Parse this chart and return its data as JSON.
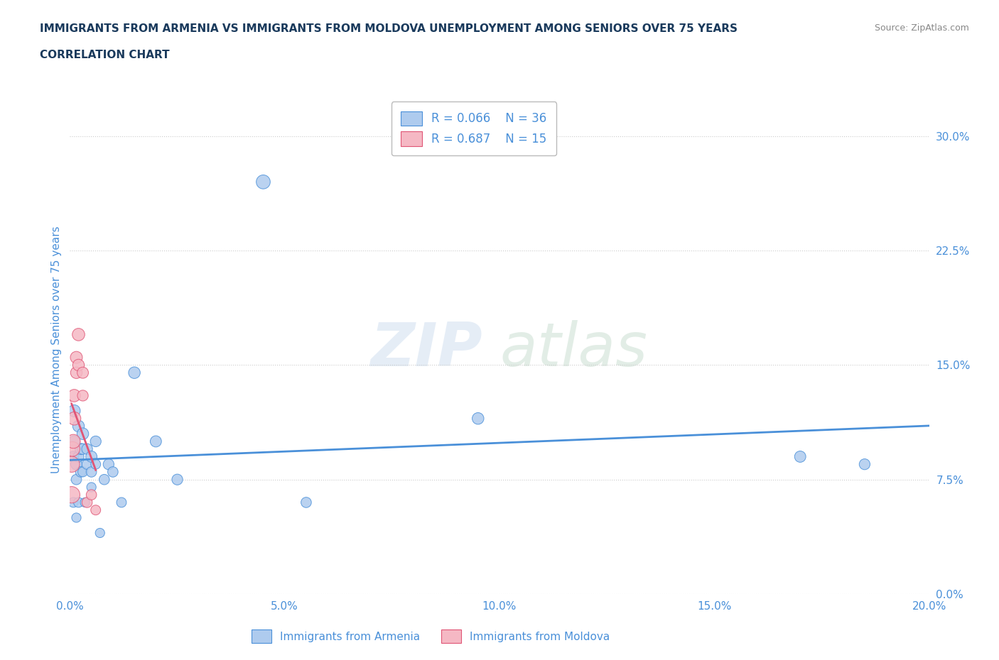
{
  "title_line1": "IMMIGRANTS FROM ARMENIA VS IMMIGRANTS FROM MOLDOVA UNEMPLOYMENT AMONG SENIORS OVER 75 YEARS",
  "title_line2": "CORRELATION CHART",
  "source": "Source: ZipAtlas.com",
  "ylabel": "Unemployment Among Seniors over 75 years",
  "watermark": "ZIPatlas",
  "armenia_R": 0.066,
  "armenia_N": 36,
  "moldova_R": 0.687,
  "moldova_N": 15,
  "armenia_color": "#aecbee",
  "moldova_color": "#f5b8c4",
  "armenia_line_color": "#4a90d9",
  "moldova_line_color": "#e05575",
  "background_color": "#ffffff",
  "grid_color": "#cccccc",
  "title_color": "#1a3a5c",
  "axis_color": "#4a90d9",
  "xlim": [
    0,
    0.2
  ],
  "ylim": [
    0,
    0.32
  ],
  "xticks": [
    0.0,
    0.05,
    0.1,
    0.15,
    0.2
  ],
  "yticks": [
    0.0,
    0.075,
    0.15,
    0.225,
    0.3
  ],
  "armenia_x": [
    0.0008,
    0.0008,
    0.001,
    0.001,
    0.0015,
    0.0015,
    0.0015,
    0.002,
    0.002,
    0.002,
    0.0025,
    0.0025,
    0.003,
    0.003,
    0.003,
    0.0035,
    0.004,
    0.004,
    0.005,
    0.005,
    0.005,
    0.006,
    0.006,
    0.007,
    0.008,
    0.009,
    0.01,
    0.012,
    0.015,
    0.02,
    0.025,
    0.045,
    0.055,
    0.095,
    0.17,
    0.185
  ],
  "armenia_y": [
    0.09,
    0.06,
    0.12,
    0.1,
    0.085,
    0.075,
    0.05,
    0.11,
    0.09,
    0.06,
    0.095,
    0.08,
    0.105,
    0.095,
    0.08,
    0.06,
    0.095,
    0.085,
    0.09,
    0.08,
    0.07,
    0.1,
    0.085,
    0.04,
    0.075,
    0.085,
    0.08,
    0.06,
    0.145,
    0.1,
    0.075,
    0.27,
    0.06,
    0.115,
    0.09,
    0.085
  ],
  "moldova_x": [
    0.0004,
    0.0004,
    0.0006,
    0.0008,
    0.001,
    0.001,
    0.0015,
    0.0015,
    0.002,
    0.002,
    0.003,
    0.003,
    0.004,
    0.005,
    0.006
  ],
  "moldova_y": [
    0.065,
    0.085,
    0.095,
    0.1,
    0.115,
    0.13,
    0.155,
    0.145,
    0.17,
    0.15,
    0.145,
    0.13,
    0.06,
    0.065,
    0.055
  ],
  "armenia_scatter_sizes": [
    120,
    100,
    150,
    130,
    130,
    110,
    90,
    140,
    120,
    100,
    130,
    110,
    140,
    120,
    100,
    90,
    120,
    110,
    130,
    110,
    90,
    120,
    100,
    90,
    110,
    120,
    110,
    100,
    140,
    130,
    120,
    200,
    110,
    140,
    130,
    120
  ],
  "moldova_scatter_sizes": [
    280,
    260,
    220,
    200,
    180,
    160,
    150,
    140,
    160,
    140,
    130,
    120,
    110,
    110,
    100
  ]
}
